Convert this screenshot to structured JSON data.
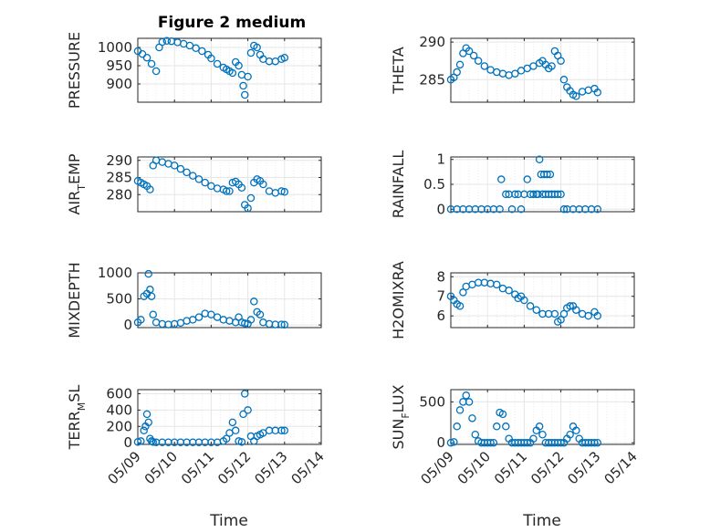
{
  "figure": {
    "title": "Figure 2 medium",
    "marker_color": "#0072bd"
  },
  "chart_data": [
    {
      "type": "scatter",
      "title": "Figure 2 medium",
      "ylabel": "PRESSURE",
      "ylabel_parts": [
        "PRESSURE"
      ],
      "xlim": [
        "05/09",
        "05/14"
      ],
      "ylim": [
        850,
        1025
      ],
      "yticks": [
        900,
        950,
        1000
      ],
      "grid": true,
      "x": [
        "05/09 00:00",
        "05/09 03:00",
        "05/09 06:00",
        "05/09 09:00",
        "05/09 12:00",
        "05/09 14:00",
        "05/09 16:00",
        "05/09 19:00",
        "05/09 22:00",
        "05/10 02:00",
        "05/10 06:00",
        "05/10 10:00",
        "05/10 14:00",
        "05/10 18:00",
        "05/10 22:00",
        "05/11 00:00",
        "05/11 04:00",
        "05/11 08:00",
        "05/11 10:00",
        "05/11 12:00",
        "05/11 14:00",
        "05/11 16:00",
        "05/11 18:00",
        "05/11 20:00",
        "05/11 21:00",
        "05/11 22:00",
        "05/12 00:00",
        "05/12 02:00",
        "05/12 04:00",
        "05/12 06:00",
        "05/12 08:00",
        "05/12 10:00",
        "05/12 14:00",
        "05/12 18:00",
        "05/12 22:00",
        "05/13 00:00"
      ],
      "y": [
        990,
        982,
        972,
        955,
        935,
        1000,
        1015,
        1018,
        1017,
        1014,
        1010,
        1005,
        998,
        990,
        980,
        970,
        955,
        945,
        940,
        935,
        930,
        960,
        950,
        925,
        895,
        870,
        920,
        985,
        1005,
        1000,
        980,
        968,
        962,
        962,
        968,
        972
      ]
    },
    {
      "type": "scatter",
      "ylabel": "THETA",
      "ylabel_parts": [
        "THETA"
      ],
      "xlim": [
        "05/09",
        "05/14"
      ],
      "ylim": [
        282,
        290.5
      ],
      "yticks": [
        285,
        290
      ],
      "grid": true,
      "x": [
        "05/09 00:00",
        "05/09 02:00",
        "05/09 04:00",
        "05/09 06:00",
        "05/09 08:00",
        "05/09 10:00",
        "05/09 12:00",
        "05/09 15:00",
        "05/09 18:00",
        "05/09 22:00",
        "05/10 02:00",
        "05/10 06:00",
        "05/10 10:00",
        "05/10 14:00",
        "05/10 18:00",
        "05/10 22:00",
        "05/11 02:00",
        "05/11 06:00",
        "05/11 10:00",
        "05/11 12:00",
        "05/11 14:00",
        "05/11 16:00",
        "05/11 18:00",
        "05/11 20:00",
        "05/11 22:00",
        "05/12 00:00",
        "05/12 02:00",
        "05/12 04:00",
        "05/12 06:00",
        "05/12 08:00",
        "05/12 10:00",
        "05/12 14:00",
        "05/12 18:00",
        "05/12 22:00",
        "05/13 00:00"
      ],
      "y": [
        285,
        285.3,
        286,
        287,
        288.5,
        289.2,
        288.8,
        288.2,
        287.5,
        286.8,
        286.3,
        286,
        285.8,
        285.6,
        285.8,
        286.2,
        286.5,
        286.8,
        287.2,
        287.5,
        287,
        286.5,
        286.8,
        288.8,
        288.2,
        287.5,
        285,
        284,
        283.5,
        283,
        282.8,
        283.4,
        283.6,
        283.8,
        283.3
      ]
    },
    {
      "type": "scatter",
      "ylabel": "AIR_TEMP",
      "ylabel_parts": [
        "AIR",
        "T",
        "EMP"
      ],
      "xlim": [
        "05/09",
        "05/14"
      ],
      "ylim": [
        275,
        291
      ],
      "yticks": [
        280,
        285,
        290
      ],
      "grid": true,
      "x": [
        "05/09 00:00",
        "05/09 02:00",
        "05/09 04:00",
        "05/09 06:00",
        "05/09 08:00",
        "05/09 10:00",
        "05/09 12:00",
        "05/09 16:00",
        "05/09 20:00",
        "05/10 00:00",
        "05/10 04:00",
        "05/10 08:00",
        "05/10 12:00",
        "05/10 16:00",
        "05/10 20:00",
        "05/11 00:00",
        "05/11 04:00",
        "05/11 08:00",
        "05/11 10:00",
        "05/11 12:00",
        "05/11 14:00",
        "05/11 16:00",
        "05/11 18:00",
        "05/11 20:00",
        "05/11 22:00",
        "05/12 00:00",
        "05/12 02:00",
        "05/12 04:00",
        "05/12 06:00",
        "05/12 08:00",
        "05/12 10:00",
        "05/12 14:00",
        "05/12 18:00",
        "05/12 22:00",
        "05/13 00:00"
      ],
      "y": [
        284,
        283.5,
        283,
        282.5,
        281.5,
        288.5,
        290,
        289.5,
        289,
        288.5,
        287.5,
        286.5,
        285.5,
        284.5,
        283.5,
        282.5,
        281.8,
        281.5,
        281,
        281,
        283.5,
        283.8,
        283,
        282,
        277,
        276,
        279,
        283.5,
        284.5,
        284,
        283,
        281,
        280.5,
        281,
        280.8
      ]
    },
    {
      "type": "scatter",
      "ylabel": "RAINFALL",
      "ylabel_parts": [
        "RAINFALL"
      ],
      "xlim": [
        "05/09",
        "05/14"
      ],
      "ylim": [
        -0.05,
        1.05
      ],
      "yticks": [
        0,
        0.5,
        1
      ],
      "grid": true,
      "x": [
        "05/09 00:00",
        "05/09 04:00",
        "05/09 08:00",
        "05/09 12:00",
        "05/09 16:00",
        "05/09 20:00",
        "05/10 00:00",
        "05/10 04:00",
        "05/10 08:00",
        "05/10 09:00",
        "05/10 12:00",
        "05/10 14:00",
        "05/10 16:00",
        "05/10 18:00",
        "05/10 20:00",
        "05/10 22:00",
        "05/11 00:00",
        "05/11 02:00",
        "05/11 04:00",
        "05/11 06:00",
        "05/11 08:00",
        "05/11 09:00",
        "05/11 10:00",
        "05/11 11:00",
        "05/11 12:00",
        "05/11 13:00",
        "05/11 14:00",
        "05/11 15:00",
        "05/11 16:00",
        "05/11 17:00",
        "05/11 18:00",
        "05/11 20:00",
        "05/11 22:00",
        "05/12 00:00",
        "05/12 02:00",
        "05/12 04:00",
        "05/12 08:00",
        "05/12 12:00",
        "05/12 16:00",
        "05/12 20:00",
        "05/13 00:00"
      ],
      "y": [
        0,
        0,
        0,
        0,
        0,
        0,
        0,
        0,
        0,
        0.6,
        0.3,
        0.3,
        0,
        0.3,
        0.3,
        0,
        0.3,
        0.6,
        0.3,
        0.3,
        0.3,
        0.3,
        1,
        0.7,
        0.3,
        0.7,
        0.3,
        0.7,
        0.3,
        0.7,
        0.3,
        0.3,
        0.3,
        0.3,
        0,
        0,
        0,
        0,
        0,
        0,
        0
      ]
    },
    {
      "type": "scatter",
      "ylabel": "MIXDEPTH",
      "ylabel_parts": [
        "MIXDEPTH"
      ],
      "xlim": [
        "05/09",
        "05/14"
      ],
      "ylim": [
        -50,
        1000
      ],
      "yticks": [
        0,
        500,
        1000
      ],
      "grid": true,
      "x": [
        "05/09 00:00",
        "05/09 02:00",
        "05/09 04:00",
        "05/09 06:00",
        "05/09 07:00",
        "05/09 08:00",
        "05/09 09:00",
        "05/09 10:00",
        "05/09 12:00",
        "05/09 16:00",
        "05/09 20:00",
        "05/10 00:00",
        "05/10 04:00",
        "05/10 08:00",
        "05/10 12:00",
        "05/10 16:00",
        "05/10 20:00",
        "05/11 00:00",
        "05/11 04:00",
        "05/11 08:00",
        "05/11 12:00",
        "05/11 16:00",
        "05/11 18:00",
        "05/11 20:00",
        "05/11 22:00",
        "05/12 00:00",
        "05/12 02:00",
        "05/12 04:00",
        "05/12 06:00",
        "05/12 08:00",
        "05/12 10:00",
        "05/12 14:00",
        "05/12 18:00",
        "05/12 22:00",
        "05/13 00:00"
      ],
      "y": [
        50,
        100,
        550,
        600,
        980,
        680,
        550,
        200,
        50,
        20,
        10,
        20,
        40,
        80,
        100,
        150,
        220,
        200,
        150,
        100,
        80,
        50,
        150,
        50,
        30,
        20,
        100,
        450,
        250,
        200,
        50,
        20,
        10,
        10,
        5
      ]
    },
    {
      "type": "scatter",
      "ylabel": "H2OMIXRA",
      "ylabel_parts": [
        "H2OMIXRA"
      ],
      "xlim": [
        "05/09",
        "05/14"
      ],
      "ylim": [
        5.4,
        8.2
      ],
      "yticks": [
        6,
        7,
        8
      ],
      "grid": true,
      "x": [
        "05/09 00:00",
        "05/09 02:00",
        "05/09 04:00",
        "05/09 06:00",
        "05/09 08:00",
        "05/09 10:00",
        "05/09 14:00",
        "05/09 18:00",
        "05/09 22:00",
        "05/10 02:00",
        "05/10 06:00",
        "05/10 10:00",
        "05/10 14:00",
        "05/10 18:00",
        "05/10 20:00",
        "05/10 22:00",
        "05/11 00:00",
        "05/11 04:00",
        "05/11 08:00",
        "05/11 12:00",
        "05/11 16:00",
        "05/11 20:00",
        "05/11 22:00",
        "05/12 00:00",
        "05/12 02:00",
        "05/12 04:00",
        "05/12 06:00",
        "05/12 08:00",
        "05/12 10:00",
        "05/12 14:00",
        "05/12 18:00",
        "05/12 22:00",
        "05/13 00:00"
      ],
      "y": [
        7,
        6.8,
        6.6,
        6.5,
        7.2,
        7.5,
        7.6,
        7.7,
        7.7,
        7.65,
        7.6,
        7.4,
        7.3,
        7.1,
        6.9,
        7,
        6.8,
        6.5,
        6.3,
        6.1,
        6.1,
        6.1,
        5.7,
        5.8,
        6.1,
        6.4,
        6.5,
        6.5,
        6.3,
        6.1,
        6,
        6.2,
        6
      ]
    },
    {
      "type": "scatter",
      "ylabel": "TERR_MSL",
      "ylabel_parts": [
        "TERR",
        "M",
        "SL"
      ],
      "xlim": [
        "05/09",
        "05/14"
      ],
      "ylim": [
        -20,
        650
      ],
      "yticks": [
        0,
        200,
        400,
        600
      ],
      "grid": true,
      "x": [
        "05/09 00:00",
        "05/09 02:00",
        "05/09 04:00",
        "05/09 05:00",
        "05/09 06:00",
        "05/09 07:00",
        "05/09 08:00",
        "05/09 09:00",
        "05/09 10:00",
        "05/09 12:00",
        "05/09 16:00",
        "05/09 20:00",
        "05/10 00:00",
        "05/10 04:00",
        "05/10 08:00",
        "05/10 12:00",
        "05/10 16:00",
        "05/10 20:00",
        "05/11 00:00",
        "05/11 04:00",
        "05/11 08:00",
        "05/11 10:00",
        "05/11 12:00",
        "05/11 14:00",
        "05/11 16:00",
        "05/11 18:00",
        "05/11 20:00",
        "05/11 21:00",
        "05/11 22:00",
        "05/12 00:00",
        "05/12 02:00",
        "05/12 04:00",
        "05/12 06:00",
        "05/12 08:00",
        "05/12 10:00",
        "05/12 14:00",
        "05/12 18:00",
        "05/12 22:00",
        "05/13 00:00"
      ],
      "y": [
        10,
        20,
        150,
        200,
        350,
        250,
        50,
        20,
        10,
        5,
        5,
        5,
        5,
        5,
        5,
        5,
        5,
        5,
        5,
        5,
        20,
        50,
        120,
        250,
        150,
        20,
        10,
        350,
        600,
        400,
        80,
        20,
        80,
        100,
        120,
        150,
        150,
        150,
        150
      ]
    },
    {
      "type": "scatter",
      "ylabel": "SUN_FLUX",
      "ylabel_parts": [
        "SUN",
        "F",
        "LUX"
      ],
      "xlim": [
        "05/09",
        "05/14"
      ],
      "ylim": [
        -20,
        650
      ],
      "yticks": [
        0,
        500
      ],
      "grid": true,
      "x": [
        "05/09 00:00",
        "05/09 02:00",
        "05/09 04:00",
        "05/09 06:00",
        "05/09 08:00",
        "05/09 10:00",
        "05/09 12:00",
        "05/09 14:00",
        "05/09 16:00",
        "05/09 18:00",
        "05/09 20:00",
        "05/09 22:00",
        "05/10 00:00",
        "05/10 02:00",
        "05/10 04:00",
        "05/10 06:00",
        "05/10 08:00",
        "05/10 10:00",
        "05/10 12:00",
        "05/10 14:00",
        "05/10 16:00",
        "05/10 18:00",
        "05/10 20:00",
        "05/10 22:00",
        "05/11 00:00",
        "05/11 02:00",
        "05/11 04:00",
        "05/11 06:00",
        "05/11 08:00",
        "05/11 10:00",
        "05/11 12:00",
        "05/11 14:00",
        "05/11 16:00",
        "05/11 18:00",
        "05/11 20:00",
        "05/11 22:00",
        "05/12 00:00",
        "05/12 02:00",
        "05/12 04:00",
        "05/12 06:00",
        "05/12 08:00",
        "05/12 10:00",
        "05/12 12:00",
        "05/12 14:00",
        "05/12 16:00",
        "05/12 18:00",
        "05/12 20:00",
        "05/12 22:00",
        "05/13 00:00"
      ],
      "y": [
        0,
        10,
        200,
        400,
        500,
        580,
        500,
        300,
        100,
        20,
        0,
        0,
        0,
        0,
        0,
        200,
        370,
        350,
        200,
        50,
        0,
        0,
        0,
        0,
        0,
        0,
        0,
        50,
        150,
        200,
        100,
        0,
        0,
        0,
        0,
        0,
        0,
        0,
        50,
        100,
        200,
        150,
        50,
        0,
        0,
        0,
        0,
        0,
        0
      ]
    }
  ],
  "axes": {
    "xticks": [
      "05/09",
      "05/10",
      "05/11",
      "05/12",
      "05/13",
      "05/14"
    ],
    "xlabel": "Time"
  }
}
